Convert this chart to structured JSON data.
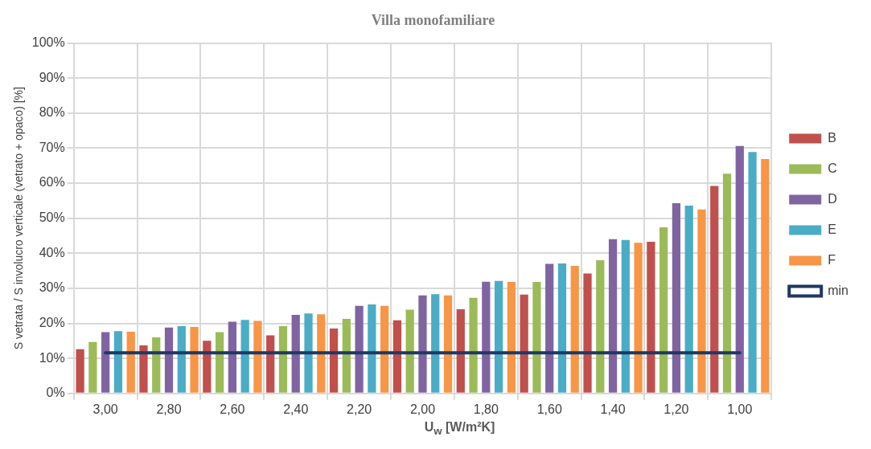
{
  "chart_data": {
    "type": "bar",
    "title": "Villa monofamiliare",
    "xlabel": "U$_{w}$ [W/m²K]",
    "ylabel": "S vetrata / S involucro verticale (vetrato + opaco) [%]",
    "categories": [
      "3,00",
      "2,80",
      "2,60",
      "2,40",
      "2,20",
      "2,00",
      "1,80",
      "1,60",
      "1,40",
      "1,20",
      "1,00"
    ],
    "series": [
      {
        "name": "B",
        "color": "#c0504d",
        "values": [
          12.6,
          13.7,
          15,
          16.6,
          18.5,
          20.9,
          24,
          28.2,
          34.2,
          43.3,
          59.2
        ]
      },
      {
        "name": "C",
        "color": "#9bbb59",
        "values": [
          14.7,
          16,
          17.5,
          19.2,
          21.3,
          23.9,
          27.3,
          31.8,
          38,
          47.4,
          62.7
        ]
      },
      {
        "name": "D",
        "color": "#8064a2",
        "values": [
          17.5,
          18.8,
          20.5,
          22.4,
          25,
          28,
          31.9,
          37,
          44,
          54.3,
          70.6
        ]
      },
      {
        "name": "E",
        "color": "#4bacc6",
        "values": [
          17.8,
          19.2,
          21,
          22.8,
          25.4,
          28.3,
          32.1,
          37.1,
          43.8,
          53.6,
          68.9
        ]
      },
      {
        "name": "F",
        "color": "#f79646",
        "values": [
          17.6,
          19,
          20.7,
          22.6,
          25,
          28,
          31.8,
          36.4,
          43,
          52.5,
          66.9
        ]
      },
      {
        "name": "min",
        "type": "line",
        "color": "#1f3864",
        "values": [
          11.6,
          11.6,
          11.6,
          11.6,
          11.6,
          11.6,
          11.6,
          11.6,
          11.6,
          11.6,
          11.6
        ]
      }
    ],
    "ylim": [
      0,
      100
    ],
    "yticks": [
      {
        "value": 0,
        "label": "0%"
      },
      {
        "value": 10,
        "label": "10%"
      },
      {
        "value": 20,
        "label": "20%"
      },
      {
        "value": 30,
        "label": "30%"
      },
      {
        "value": 40,
        "label": "40%"
      },
      {
        "value": 50,
        "label": "50%"
      },
      {
        "value": 60,
        "label": "60%"
      },
      {
        "value": 70,
        "label": "70%"
      },
      {
        "value": 80,
        "label": "80%"
      },
      {
        "value": 90,
        "label": "90%"
      },
      {
        "value": 100,
        "label": "100%"
      }
    ],
    "grid": true,
    "legend": "right",
    "marker": "none"
  }
}
